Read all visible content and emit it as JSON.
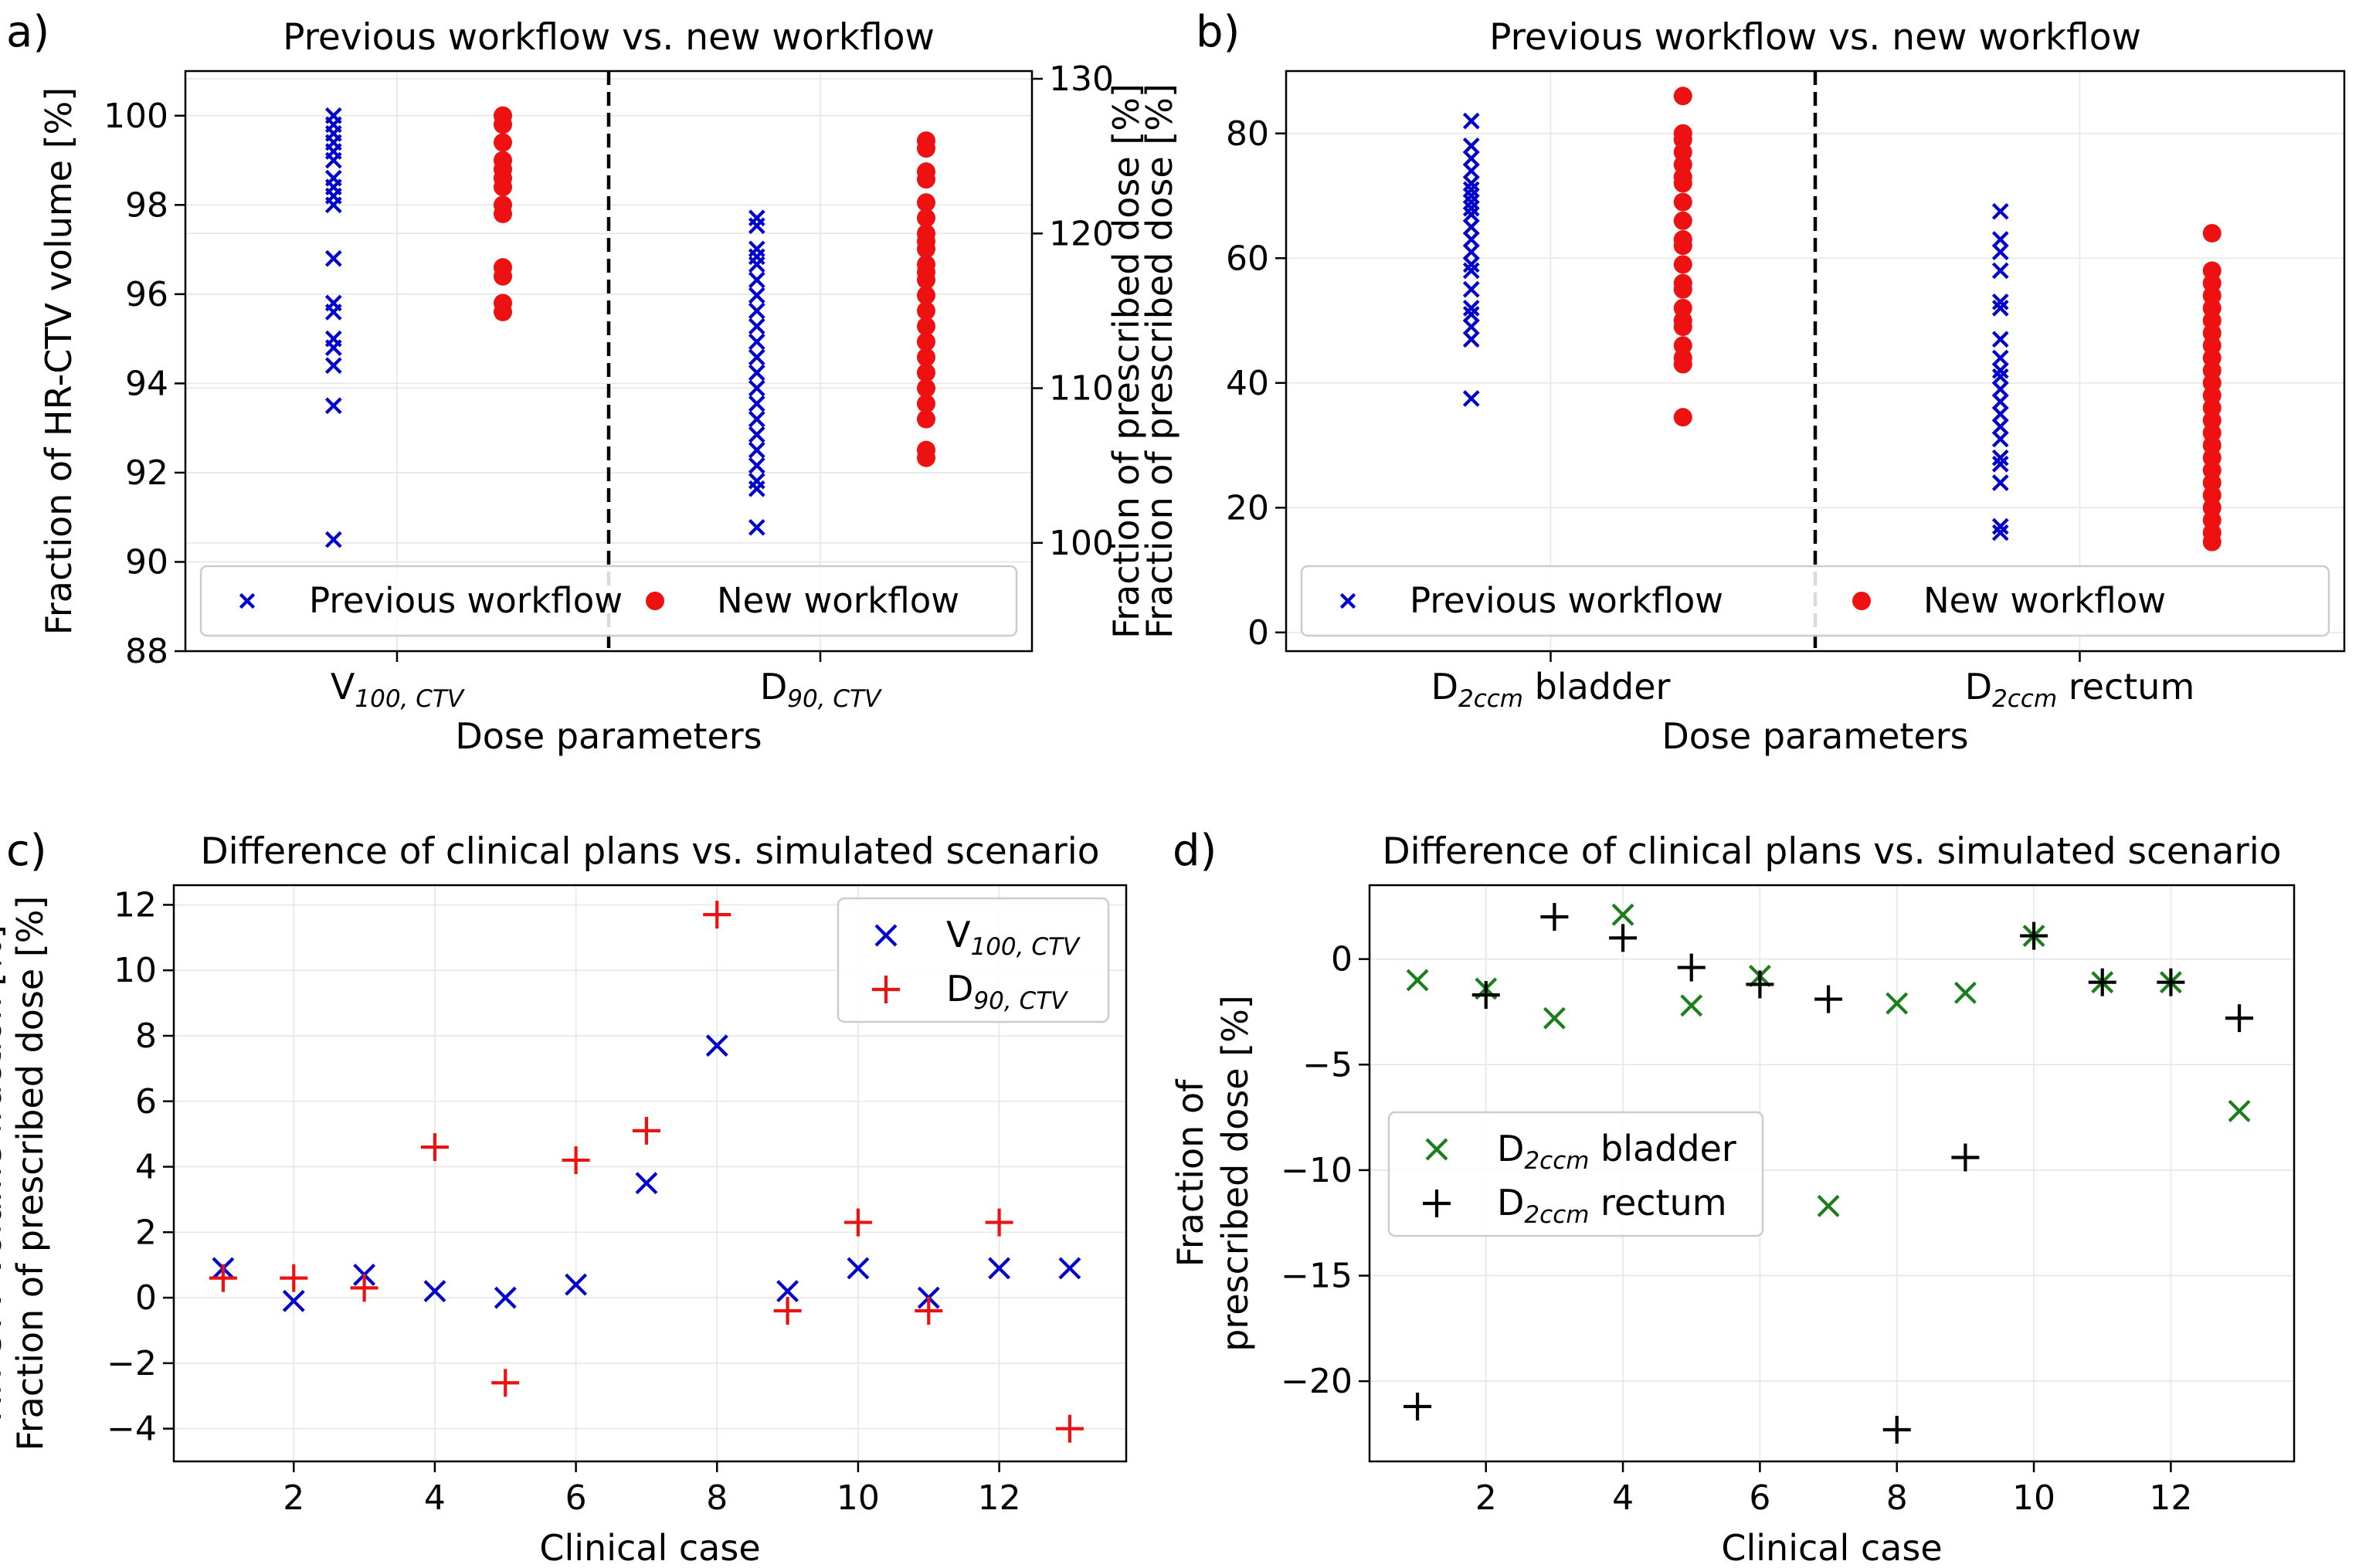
{
  "colors": {
    "blue": "#0000cc",
    "red": "#ee1111",
    "green": "#1a7f1a",
    "black": "#000000"
  },
  "chart_data": [
    {
      "panel_label": "a)",
      "type": "scatter",
      "title": "Previous workflow vs. new workflow",
      "xlabel": "Dose parameters",
      "ylabel": "Fraction of HR-CTV volume [%]",
      "y2label": "Fraction of prescribed dose [%]",
      "ylim": [
        88,
        101
      ],
      "yticks": [
        88,
        90,
        92,
        94,
        96,
        98,
        100
      ],
      "y2lim": [
        93,
        130.5
      ],
      "y2ticks": [
        100,
        110,
        120,
        130
      ],
      "xlim": [
        0,
        2
      ],
      "divider_x": 1,
      "categories": [
        {
          "main": "V",
          "sub": "100, CTV",
          "suffix": "",
          "x": 0.5
        },
        {
          "main": "D",
          "sub": "90, CTV",
          "suffix": "",
          "x": 1.5
        }
      ],
      "legend": [
        {
          "label": "Previous workflow",
          "marker": "x",
          "color": "blue"
        },
        {
          "label": "New workflow",
          "marker": "o",
          "color": "red"
        }
      ],
      "series": [
        {
          "name": "Previous workflow V100",
          "marker": "x",
          "color": "blue",
          "axis": "left",
          "x": 0.35,
          "values": [
            100,
            99.8,
            99.6,
            99.4,
            99.2,
            99.0,
            98.6,
            98.4,
            98.2,
            98.0,
            96.8,
            95.8,
            95.6,
            95.0,
            94.8,
            94.4,
            93.5,
            90.5
          ]
        },
        {
          "name": "New workflow V100",
          "marker": "o",
          "color": "red",
          "axis": "left",
          "x": 0.75,
          "values": [
            100,
            99.8,
            99.4,
            99.0,
            98.8,
            98.6,
            98.4,
            98.0,
            97.8,
            96.6,
            96.4,
            95.8,
            95.6
          ]
        },
        {
          "name": "Previous workflow D90",
          "marker": "x",
          "color": "blue",
          "axis": "right",
          "x": 1.35,
          "values": [
            121,
            120.5,
            119,
            118.5,
            118,
            117,
            116,
            115,
            114,
            113,
            112,
            111,
            110,
            109,
            108,
            107,
            106,
            105,
            104,
            103.5,
            101
          ]
        },
        {
          "name": "New workflow D90",
          "marker": "o",
          "color": "red",
          "axis": "right",
          "x": 1.75,
          "values": [
            126,
            125.5,
            124,
            123.5,
            122,
            121,
            120,
            119.5,
            119,
            118,
            117.5,
            117,
            116,
            115,
            114,
            113,
            112,
            111,
            110,
            109,
            108,
            106,
            105.5
          ]
        }
      ]
    },
    {
      "panel_label": "b)",
      "type": "scatter",
      "title": "Previous workflow vs. new workflow",
      "xlabel": "Dose parameters",
      "ylabel": "Fraction of prescribed dose [%]",
      "ylim": [
        -3,
        90
      ],
      "yticks": [
        0,
        20,
        40,
        60,
        80
      ],
      "xlim": [
        0,
        2
      ],
      "divider_x": 1,
      "categories": [
        {
          "main": "D",
          "sub": "2ccm",
          "suffix": " bladder",
          "x": 0.5
        },
        {
          "main": "D",
          "sub": "2ccm",
          "suffix": " rectum",
          "x": 1.5
        }
      ],
      "legend": [
        {
          "label": "Previous workflow",
          "marker": "x",
          "color": "blue"
        },
        {
          "label": "New workflow",
          "marker": "o",
          "color": "red"
        }
      ],
      "series": [
        {
          "name": "Previous workflow bladder",
          "marker": "x",
          "color": "blue",
          "axis": "left",
          "x": 0.35,
          "values": [
            82,
            78,
            76,
            74,
            72,
            71,
            70,
            69,
            68,
            67,
            65,
            63,
            61,
            59,
            58,
            55,
            52,
            51,
            49,
            47,
            37.5
          ]
        },
        {
          "name": "New workflow bladder",
          "marker": "o",
          "color": "red",
          "axis": "left",
          "x": 0.75,
          "values": [
            86,
            80,
            79,
            77,
            75,
            73,
            72,
            69,
            66,
            63,
            62,
            59,
            56,
            55,
            52,
            50,
            49,
            46,
            44,
            43,
            34.5
          ]
        },
        {
          "name": "Previous workflow rectum",
          "marker": "x",
          "color": "blue",
          "axis": "left",
          "x": 1.35,
          "values": [
            67.5,
            63,
            61,
            58,
            53,
            52,
            47,
            44,
            42,
            41,
            39,
            37,
            35,
            33,
            31,
            28,
            27,
            24,
            17,
            16
          ]
        },
        {
          "name": "New workflow rectum",
          "marker": "o",
          "color": "red",
          "axis": "left",
          "x": 1.75,
          "values": [
            64,
            58,
            56,
            54,
            52,
            50,
            48,
            46,
            44,
            42,
            40,
            38,
            36,
            34,
            32,
            30,
            28,
            26,
            24,
            22,
            20,
            18,
            16,
            14.5
          ]
        }
      ]
    },
    {
      "panel_label": "c)",
      "type": "scatter",
      "title": "Difference of clinical plans vs. simulated scenario",
      "xlabel": "Clinical case",
      "ylabel": "HR-CTV volume fraction [%]",
      "ylabel2": "Fraction of prescribed dose [%]",
      "xlim": [
        0.3,
        13.8
      ],
      "ylim": [
        -5,
        12.6
      ],
      "xticks": [
        2,
        4,
        6,
        8,
        10,
        12
      ],
      "yticks": [
        -4,
        -2,
        0,
        2,
        4,
        6,
        8,
        10,
        12
      ],
      "legend": [
        {
          "main": "V",
          "sub": "100, CTV",
          "suffix": "",
          "marker": "x",
          "color": "blue"
        },
        {
          "main": "D",
          "sub": "90, CTV",
          "suffix": "",
          "marker": "+",
          "color": "red"
        }
      ],
      "series": [
        {
          "name": "V100,CTV",
          "marker": "x",
          "color": "blue",
          "x": [
            1,
            2,
            3,
            4,
            5,
            6,
            7,
            8,
            9,
            10,
            11,
            12,
            13
          ],
          "values": [
            0.9,
            -0.1,
            0.7,
            0.2,
            0.0,
            0.4,
            3.5,
            7.7,
            0.2,
            0.9,
            0.0,
            0.9,
            0.9
          ]
        },
        {
          "name": "D90,CTV",
          "marker": "+",
          "color": "red",
          "x": [
            1,
            2,
            3,
            4,
            5,
            6,
            7,
            8,
            9,
            10,
            11,
            12,
            13
          ],
          "values": [
            0.6,
            0.6,
            0.3,
            4.6,
            -2.6,
            4.2,
            5.1,
            11.7,
            -0.4,
            2.3,
            -0.4,
            2.3,
            -4.0
          ]
        }
      ]
    },
    {
      "panel_label": "d)",
      "type": "scatter",
      "title": "Difference of clinical plans vs. simulated scenario",
      "xlabel": "Clinical case",
      "ylabel": "Fraction of",
      "ylabel2": "prescribed dose [%]",
      "xlim": [
        0.3,
        13.8
      ],
      "ylim": [
        -23.8,
        3.5
      ],
      "xticks": [
        2,
        4,
        6,
        8,
        10,
        12
      ],
      "yticks": [
        -20,
        -15,
        -10,
        -5,
        0
      ],
      "legend": [
        {
          "main": "D",
          "sub": "2ccm",
          "suffix": " bladder",
          "marker": "x",
          "color": "green"
        },
        {
          "main": "D",
          "sub": "2ccm",
          "suffix": " rectum",
          "marker": "+",
          "color": "black"
        }
      ],
      "series": [
        {
          "name": "D2ccm bladder",
          "marker": "x",
          "color": "green",
          "x": [
            1,
            2,
            3,
            4,
            5,
            6,
            7,
            8,
            9,
            10,
            11,
            12,
            13
          ],
          "values": [
            -1.0,
            -1.4,
            -2.8,
            2.1,
            -2.2,
            -0.8,
            -11.7,
            -2.1,
            -1.6,
            1.1,
            -1.1,
            -1.1,
            -7.2
          ]
        },
        {
          "name": "D2ccm rectum",
          "marker": "+",
          "color": "black",
          "x": [
            1,
            2,
            3,
            4,
            5,
            6,
            7,
            8,
            9,
            10,
            11,
            12,
            13
          ],
          "values": [
            -21.2,
            -1.7,
            2.0,
            1.0,
            -0.4,
            -1.2,
            -1.9,
            -22.3,
            -9.4,
            1.1,
            -1.1,
            -1.1,
            -2.8
          ]
        }
      ]
    }
  ]
}
